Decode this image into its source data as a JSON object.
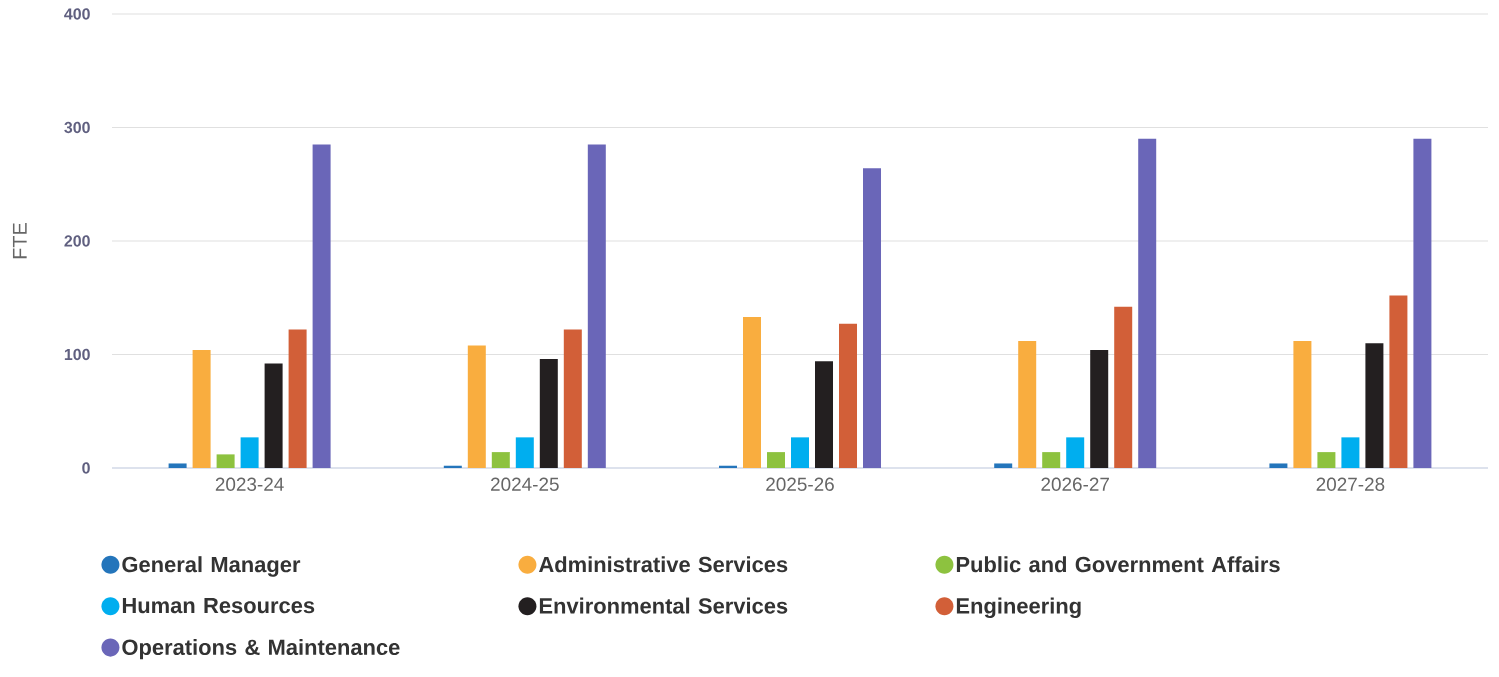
{
  "chart_data": {
    "type": "bar",
    "ylabel": "FTE",
    "categories": [
      "2023-24",
      "2024-25",
      "2025-26",
      "2026-27",
      "2027-28"
    ],
    "series": [
      {
        "name": "General Manager",
        "color": "#2475bb",
        "values": [
          4,
          2,
          2,
          4,
          4
        ]
      },
      {
        "name": "Administrative Services",
        "color": "#f9ad3f",
        "values": [
          104,
          108,
          133,
          112,
          112
        ]
      },
      {
        "name": "Public and Government Affairs",
        "color": "#8dc23f",
        "values": [
          12,
          14,
          14,
          14,
          14
        ]
      },
      {
        "name": "Human Resources",
        "color": "#00aeef",
        "values": [
          27,
          27,
          27,
          27,
          27
        ]
      },
      {
        "name": "Environmental Services",
        "color": "#231f20",
        "values": [
          92,
          96,
          94,
          104,
          110
        ]
      },
      {
        "name": "Engineering",
        "color": "#d25f38",
        "values": [
          122,
          122,
          127,
          142,
          152
        ]
      },
      {
        "name": "Operations & Maintenance",
        "color": "#6a66b8",
        "values": [
          285,
          285,
          264,
          290,
          290
        ]
      }
    ],
    "ylim": [
      0,
      400
    ],
    "yticks": [
      0,
      100,
      200,
      300,
      400
    ],
    "grid": "y",
    "legend": "bottom"
  }
}
